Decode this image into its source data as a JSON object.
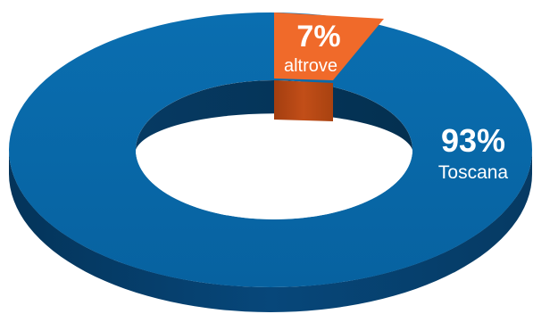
{
  "chart_data": {
    "type": "pie",
    "style": "3d-donut",
    "categories": [
      "Toscana",
      "altrove"
    ],
    "values": [
      93,
      7
    ],
    "unit": "%",
    "colors": {
      "Toscana": "#0868a8",
      "altrove": "#f06a2a"
    },
    "labels": [
      {
        "percent": "93%",
        "name": "Toscana"
      },
      {
        "percent": "7%",
        "name": "altrove"
      }
    ],
    "legend": "none"
  }
}
